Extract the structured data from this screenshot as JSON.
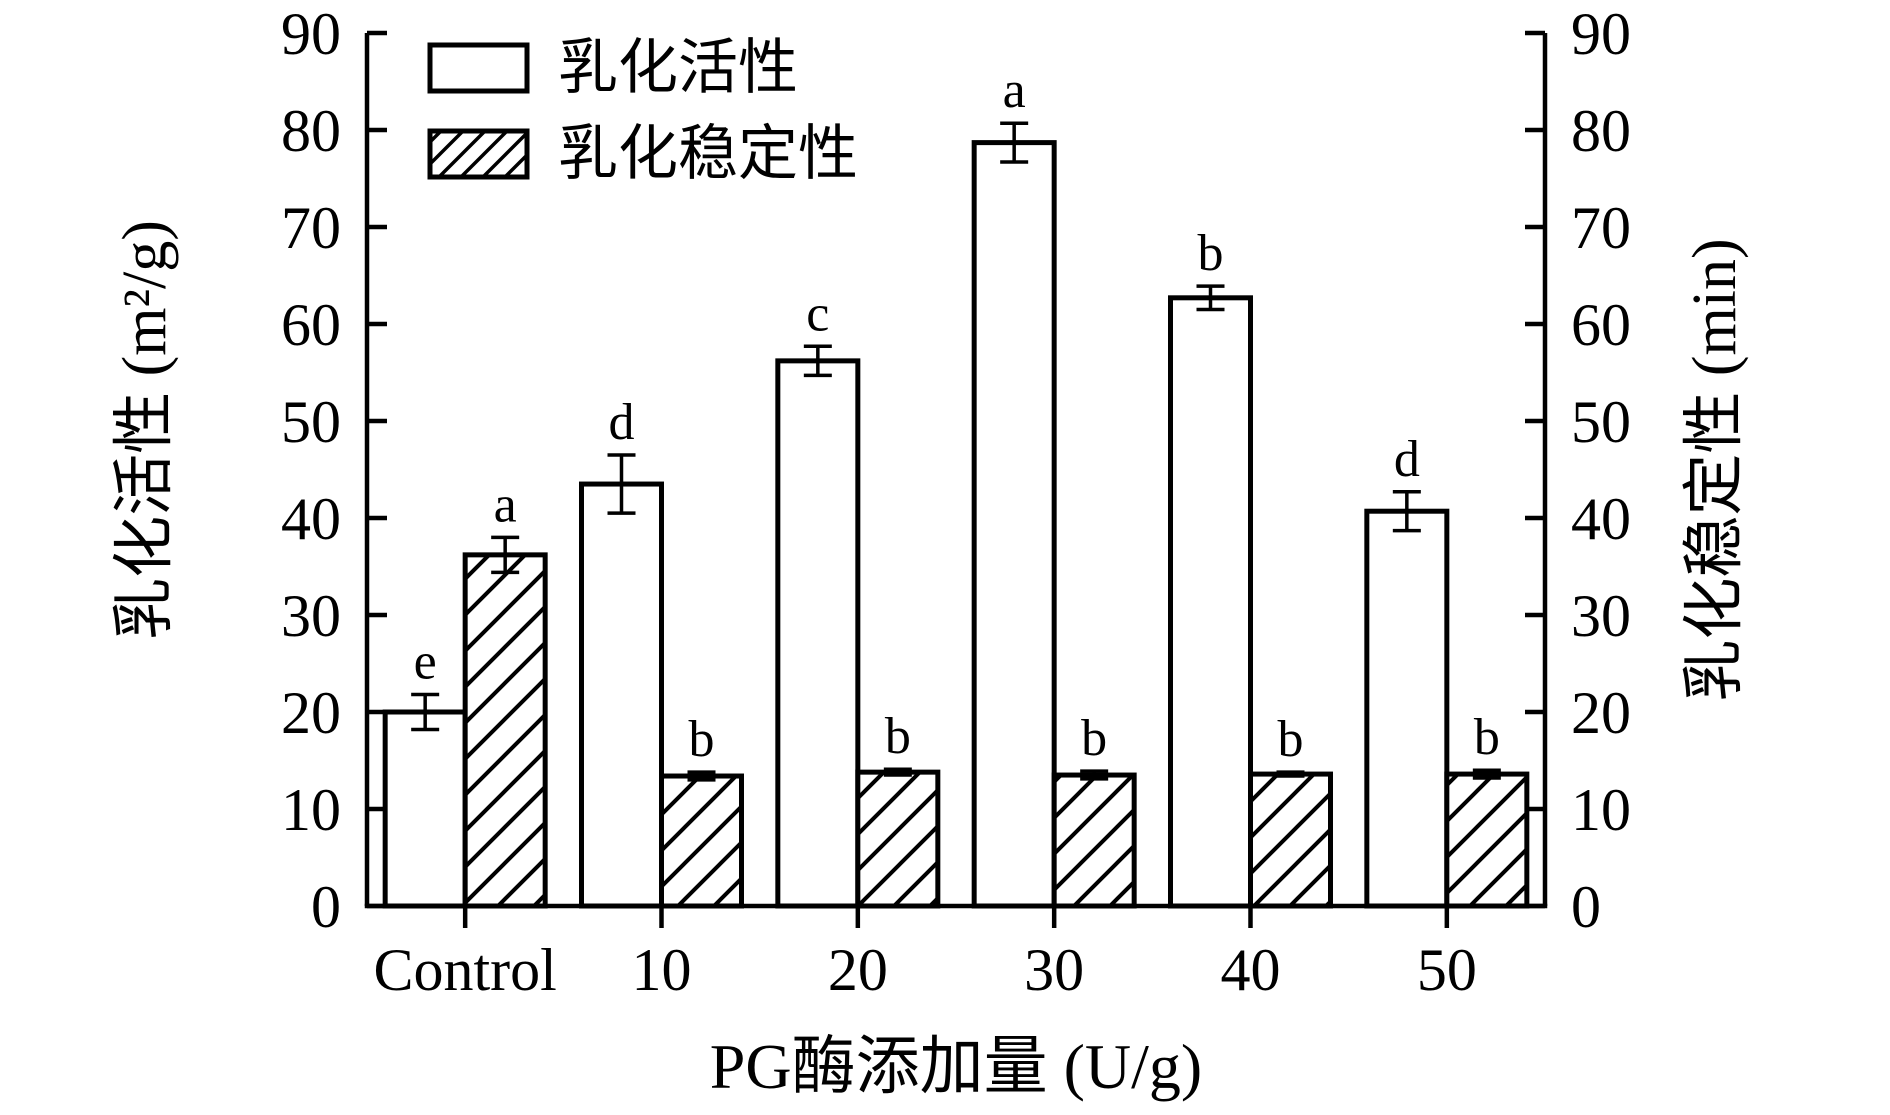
{
  "colors": {
    "foreground": "#000000",
    "background": "#ffffff"
  },
  "chart_data": {
    "type": "bar",
    "title": "",
    "categories": [
      "Control",
      "10",
      "20",
      "30",
      "40",
      "50"
    ],
    "xlabel": "PG酶添加量 (U/g)",
    "ylabel_left": "乳化活性 (m²/g)",
    "ylabel_right": "乳化稳定性 (min)",
    "ylim": [
      0,
      90
    ],
    "ytick_step": 10,
    "yticks": [
      0,
      10,
      20,
      30,
      40,
      50,
      60,
      70,
      80,
      90
    ],
    "grid": "off",
    "legend_position": "top-left-inside",
    "series": [
      {
        "name": "乳化活性",
        "axis": "left",
        "style": "white-outline",
        "values": [
          20.0,
          43.5,
          56.2,
          78.7,
          62.7,
          40.7
        ],
        "errors": [
          1.8,
          3.0,
          1.5,
          2.0,
          1.2,
          2.0
        ],
        "letters": [
          "e",
          "d",
          "c",
          "a",
          "b",
          "d"
        ]
      },
      {
        "name": "乳化稳定性",
        "axis": "right",
        "style": "diagonal-hatch",
        "values": [
          36.2,
          13.4,
          13.8,
          13.5,
          13.6,
          13.6
        ],
        "errors": [
          1.8,
          0.4,
          0.3,
          0.4,
          0.2,
          0.4
        ],
        "letters": [
          "a",
          "b",
          "b",
          "b",
          "b",
          "b"
        ]
      }
    ]
  }
}
